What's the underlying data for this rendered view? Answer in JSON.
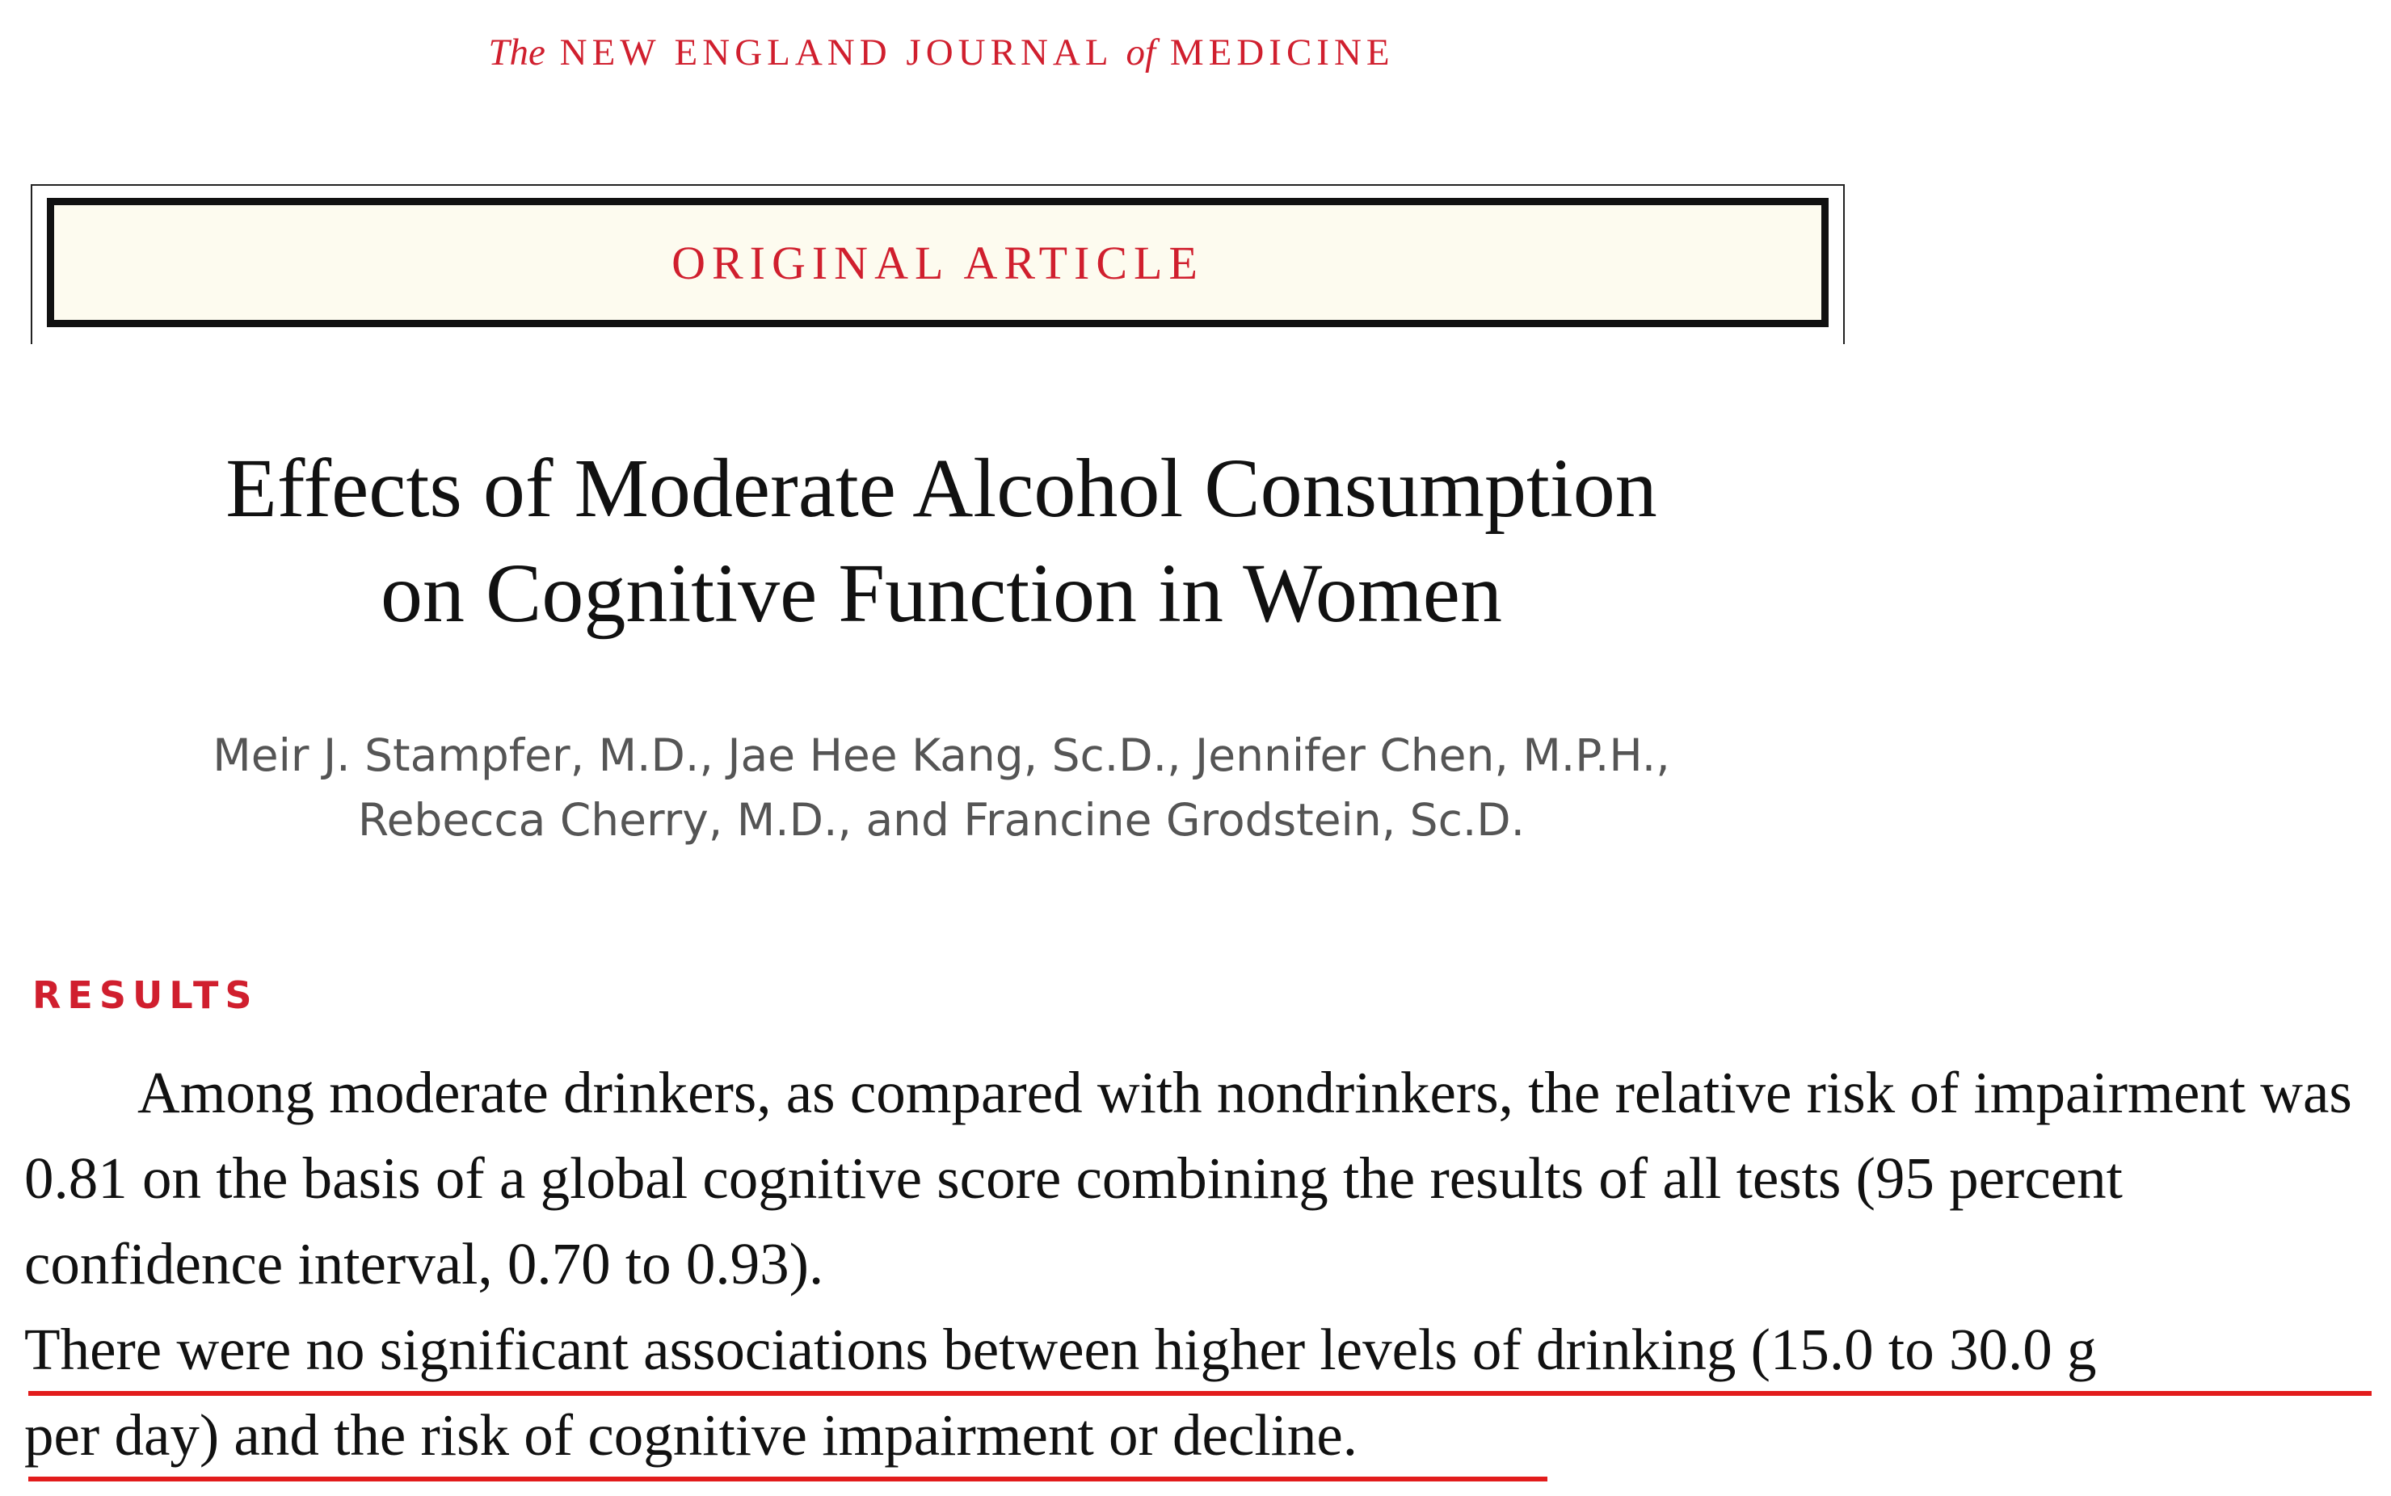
{
  "journal": {
    "the": "The",
    "name1": "NEW ENGLAND JOURNAL",
    "of": "of",
    "name2": "MEDICINE"
  },
  "article_type": "ORIGINAL ARTICLE",
  "title": {
    "line1": "Effects of Moderate Alcohol Consumption",
    "line2": "on Cognitive Function in Women"
  },
  "authors": {
    "line1": "Meir J. Stampfer, M.D., Jae Hee Kang, Sc.D., Jennifer Chen, M.P.H.,",
    "line2": "Rebecca Cherry, M.D., and Francine Grodstein, Sc.D."
  },
  "results": {
    "heading": "RESULTS",
    "paragraph": "Among moderate drinkers, as compared with nondrinkers, the relative risk of impairment was 0.81 on the basis of a global cognitive score combining the results of all tests (95 percent confidence interval, 0.70 to 0.93).",
    "highlight_line1": "There were no significant associations between higher levels of drinking (15.0 to 30.0 g",
    "highlight_line2": "per day) and the risk of cognitive impairment or decline."
  },
  "colors": {
    "accent_red": "#d01f2e",
    "underline_red": "#e21c1c",
    "box_background": "#fdfbef"
  }
}
